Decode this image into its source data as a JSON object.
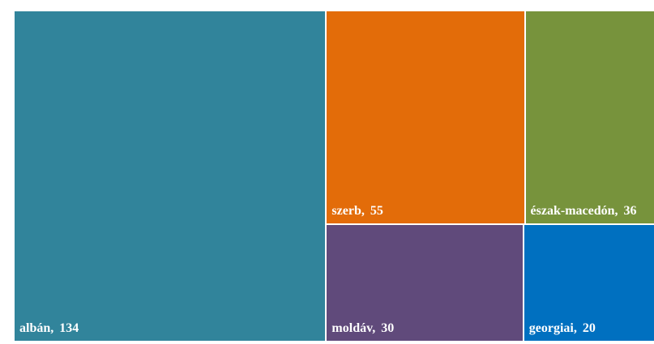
{
  "chart_data": {
    "type": "treemap",
    "values": [
      134,
      55,
      36,
      30,
      20
    ],
    "value_labels": [
      "albán, 134",
      "szerb, 55",
      "észak-macedón, 36",
      "moldáv, 30",
      "georgiai, 20"
    ],
    "colors": [
      "#31849b",
      "#e36c09",
      "#77933c",
      "#604a7b",
      "#0070c0"
    ]
  }
}
